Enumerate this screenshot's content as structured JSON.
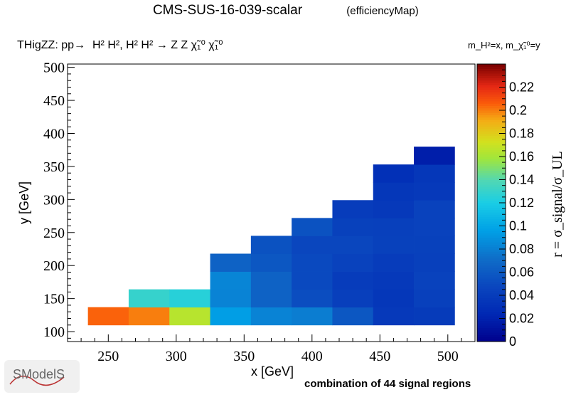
{
  "header": {
    "title": "CMS-SUS-16-039-scalar",
    "subtitle": "(efficiencyMap)"
  },
  "process": {
    "prefix": "THigZZ: pp",
    "arrow1": "→",
    "final": "H² H², H² H² → Z Z χ̃₁⁰ χ̃₁⁰"
  },
  "mass_note": "m_H²=x, m_χ̃₁⁰=y",
  "footer": {
    "note": "combination of 44 signal regions",
    "logo_text": "SModelS"
  },
  "chart_data": {
    "type": "heatmap",
    "xlabel": "x [GeV]",
    "ylabel": "y [GeV]",
    "zlabel": "r = σ_signal/σ_UL",
    "xlim": [
      220,
      520
    ],
    "ylim": [
      85,
      505
    ],
    "zlim": [
      0,
      0.24
    ],
    "x_ticks": [
      250,
      300,
      350,
      400,
      450,
      500
    ],
    "y_ticks": [
      100,
      150,
      200,
      250,
      300,
      350,
      400,
      450,
      500
    ],
    "z_ticks": [
      0,
      0.02,
      0.04,
      0.06,
      0.08,
      0.1,
      0.12,
      0.14,
      0.16,
      0.18,
      0.2,
      0.22
    ],
    "x_bin_edges": [
      220,
      250,
      280,
      310,
      340,
      370,
      400,
      430,
      460,
      490,
      520
    ],
    "columns": [
      {
        "x": 250,
        "cells": [
          {
            "y0": 110,
            "y1": 137,
            "z": 0.205
          }
        ]
      },
      {
        "x": 280,
        "cells": [
          {
            "y0": 110,
            "y1": 137,
            "z": 0.2
          },
          {
            "y0": 137,
            "y1": 164,
            "z": 0.13
          }
        ]
      },
      {
        "x": 310,
        "cells": [
          {
            "y0": 110,
            "y1": 137,
            "z": 0.165
          },
          {
            "y0": 137,
            "y1": 164,
            "z": 0.125
          }
        ]
      },
      {
        "x": 340,
        "cells": [
          {
            "y0": 110,
            "y1": 137,
            "z": 0.095
          },
          {
            "y0": 137,
            "y1": 164,
            "z": 0.082
          },
          {
            "y0": 164,
            "y1": 191,
            "z": 0.083
          },
          {
            "y0": 191,
            "y1": 218,
            "z": 0.065
          }
        ]
      },
      {
        "x": 370,
        "cells": [
          {
            "y0": 110,
            "y1": 137,
            "z": 0.082
          },
          {
            "y0": 137,
            "y1": 164,
            "z": 0.065
          },
          {
            "y0": 164,
            "y1": 191,
            "z": 0.065
          },
          {
            "y0": 191,
            "y1": 218,
            "z": 0.058
          },
          {
            "y0": 218,
            "y1": 245,
            "z": 0.055
          }
        ]
      },
      {
        "x": 400,
        "cells": [
          {
            "y0": 110,
            "y1": 137,
            "z": 0.079
          },
          {
            "y0": 137,
            "y1": 164,
            "z": 0.052
          },
          {
            "y0": 164,
            "y1": 191,
            "z": 0.05
          },
          {
            "y0": 191,
            "y1": 218,
            "z": 0.05
          },
          {
            "y0": 218,
            "y1": 245,
            "z": 0.048
          },
          {
            "y0": 245,
            "y1": 272,
            "z": 0.055
          }
        ]
      },
      {
        "x": 430,
        "cells": [
          {
            "y0": 110,
            "y1": 137,
            "z": 0.058
          },
          {
            "y0": 137,
            "y1": 164,
            "z": 0.042
          },
          {
            "y0": 164,
            "y1": 191,
            "z": 0.04
          },
          {
            "y0": 191,
            "y1": 218,
            "z": 0.045
          },
          {
            "y0": 218,
            "y1": 245,
            "z": 0.048
          },
          {
            "y0": 245,
            "y1": 272,
            "z": 0.044
          },
          {
            "y0": 272,
            "y1": 299,
            "z": 0.04
          }
        ]
      },
      {
        "x": 460,
        "cells": [
          {
            "y0": 110,
            "y1": 137,
            "z": 0.038
          },
          {
            "y0": 137,
            "y1": 164,
            "z": 0.036
          },
          {
            "y0": 164,
            "y1": 191,
            "z": 0.038
          },
          {
            "y0": 191,
            "y1": 218,
            "z": 0.04
          },
          {
            "y0": 218,
            "y1": 245,
            "z": 0.044
          },
          {
            "y0": 245,
            "y1": 272,
            "z": 0.043
          },
          {
            "y0": 272,
            "y1": 299,
            "z": 0.038
          },
          {
            "y0": 299,
            "y1": 326,
            "z": 0.036
          },
          {
            "y0": 326,
            "y1": 353,
            "z": 0.03
          }
        ]
      },
      {
        "x": 490,
        "cells": [
          {
            "y0": 110,
            "y1": 137,
            "z": 0.039
          },
          {
            "y0": 137,
            "y1": 164,
            "z": 0.043
          },
          {
            "y0": 164,
            "y1": 191,
            "z": 0.045
          },
          {
            "y0": 191,
            "y1": 218,
            "z": 0.043
          },
          {
            "y0": 218,
            "y1": 245,
            "z": 0.044
          },
          {
            "y0": 245,
            "y1": 272,
            "z": 0.045
          },
          {
            "y0": 272,
            "y1": 299,
            "z": 0.045
          },
          {
            "y0": 299,
            "y1": 326,
            "z": 0.038
          },
          {
            "y0": 326,
            "y1": 353,
            "z": 0.036
          },
          {
            "y0": 353,
            "y1": 380,
            "z": 0.018
          }
        ]
      }
    ]
  }
}
